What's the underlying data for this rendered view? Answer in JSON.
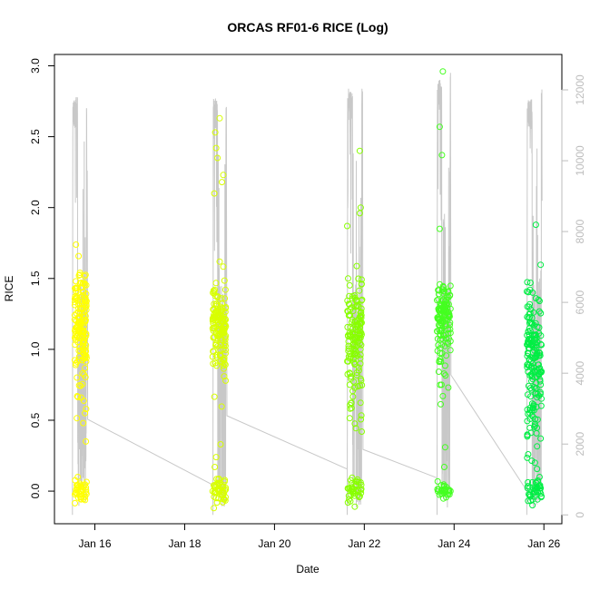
{
  "chart_data": {
    "type": "scatter",
    "title": "ORCAS RF01-6 RICE (Log)",
    "xlabel": "Date",
    "ylabel": "RICE",
    "x_ticks": [
      "Jan 16",
      "Jan 18",
      "Jan 20",
      "Jan 22",
      "Jan 24",
      "Jan 26"
    ],
    "x_tick_days": [
      16,
      18,
      20,
      22,
      24,
      26
    ],
    "xlim": [
      15.1,
      26.4
    ],
    "ylim": [
      -0.23,
      3.08
    ],
    "y_ticks": [
      0.0,
      0.5,
      1.0,
      1.5,
      2.0,
      2.5,
      3.0
    ],
    "y_tick_labels": [
      "0.0",
      "0.5",
      "1.0",
      "1.5",
      "2.0",
      "2.5",
      "3.0"
    ],
    "y2lim": [
      -250,
      13000
    ],
    "y2_ticks": [
      0,
      2000,
      4000,
      6000,
      8000,
      10000,
      12000
    ],
    "y2_tick_labels": [
      "0",
      "2000",
      "4000",
      "6000",
      "8000",
      "10000",
      "12000"
    ],
    "colors": {
      "axis": "#000000",
      "secondary_axis": "#bdbdbd",
      "altitude_line": "#c8c8c8"
    },
    "series": [
      {
        "flight": 1,
        "color": "#ffff00",
        "x_range": [
          15.55,
          15.82
        ],
        "clusters": [
          {
            "center": 1.2,
            "spread": 0.18,
            "n": 150
          },
          {
            "center": 0.0,
            "spread": 0.04,
            "n": 40
          },
          {
            "center": 0.85,
            "spread": 0.15,
            "n": 12
          }
        ],
        "outliers": [
          [
            15.8,
            0.35
          ],
          [
            15.74,
            0.48
          ],
          [
            15.62,
            0.1
          ],
          [
            15.78,
            0.55
          ]
        ]
      },
      {
        "flight": 2,
        "color": "#d8ff00",
        "x_range": [
          18.62,
          18.92
        ],
        "clusters": [
          {
            "center": 1.2,
            "spread": 0.15,
            "n": 120
          },
          {
            "center": 0.95,
            "spread": 0.15,
            "n": 25
          },
          {
            "center": 0.0,
            "spread": 0.05,
            "n": 45
          }
        ],
        "outliers": [
          [
            18.78,
            2.63
          ],
          [
            18.68,
            2.53
          ],
          [
            18.7,
            2.42
          ],
          [
            18.86,
            2.23
          ],
          [
            18.83,
            2.18
          ],
          [
            18.66,
            2.1
          ],
          [
            18.73,
            2.35
          ],
          [
            18.88,
            0.81
          ],
          [
            18.8,
            0.33
          ],
          [
            18.7,
            0.24
          ],
          [
            18.67,
            0.17
          ],
          [
            18.65,
            -0.12
          ],
          [
            18.72,
            -0.08
          ]
        ]
      },
      {
        "flight": 3,
        "color": "#88ff00",
        "x_range": [
          21.62,
          21.95
        ],
        "clusters": [
          {
            "center": 1.2,
            "spread": 0.14,
            "n": 100
          },
          {
            "center": 0.95,
            "spread": 0.15,
            "n": 45
          },
          {
            "center": 0.0,
            "spread": 0.04,
            "n": 40
          },
          {
            "center": 0.6,
            "spread": 0.1,
            "n": 10
          }
        ],
        "outliers": [
          [
            21.9,
            2.4
          ],
          [
            21.92,
            2.0
          ],
          [
            21.9,
            1.96
          ],
          [
            21.62,
            1.87
          ],
          [
            21.64,
            1.5
          ],
          [
            21.95,
            1.35
          ],
          [
            21.93,
            0.78
          ]
        ]
      },
      {
        "flight": 4,
        "color": "#44ff20",
        "x_range": [
          23.62,
          23.92
        ],
        "clusters": [
          {
            "center": 1.25,
            "spread": 0.12,
            "n": 110
          },
          {
            "center": 1.0,
            "spread": 0.12,
            "n": 25
          },
          {
            "center": 0.0,
            "spread": 0.03,
            "n": 30
          }
        ],
        "outliers": [
          [
            23.75,
            2.96
          ],
          [
            23.68,
            2.57
          ],
          [
            23.73,
            2.37
          ],
          [
            23.68,
            1.85
          ],
          [
            23.8,
            0.31
          ],
          [
            23.78,
            0.17
          ],
          [
            23.75,
            0.67
          ],
          [
            23.72,
            0.75
          ]
        ]
      },
      {
        "flight": 5,
        "color": "#00ee44",
        "x_range": [
          25.62,
          25.95
        ],
        "clusters": [
          {
            "center": 1.0,
            "spread": 0.25,
            "n": 150
          },
          {
            "center": 0.5,
            "spread": 0.2,
            "n": 30
          },
          {
            "center": 0.0,
            "spread": 0.05,
            "n": 40
          }
        ],
        "outliers": [
          [
            25.7,
            1.47
          ],
          [
            25.75,
            1.4
          ],
          [
            25.88,
            1.35
          ],
          [
            25.65,
            0.26
          ],
          [
            25.8,
            0.2
          ]
        ]
      }
    ],
    "altitude_line": {
      "description_note": "secondary axis trace",
      "flights": [
        {
          "start": 15.5,
          "end": 15.83,
          "max": 12100,
          "gap_end": 18.63,
          "tail": 2700,
          "gap_tail": 850
        },
        {
          "start": 18.63,
          "end": 18.93,
          "max": 12100,
          "gap_end": 21.62,
          "tail": 2800,
          "gap_tail": 1300
        },
        {
          "start": 21.62,
          "end": 21.96,
          "max": 12350,
          "gap_end": 23.62,
          "tail": 1850,
          "gap_tail": 1050
        },
        {
          "start": 23.62,
          "end": 23.92,
          "max": 12600,
          "gap_end": 25.62,
          "tail": 3950,
          "gap_tail": 700
        },
        {
          "start": 25.62,
          "end": 25.96,
          "max": 12050,
          "gap_end": null,
          "tail": null,
          "gap_tail": null
        }
      ]
    }
  }
}
